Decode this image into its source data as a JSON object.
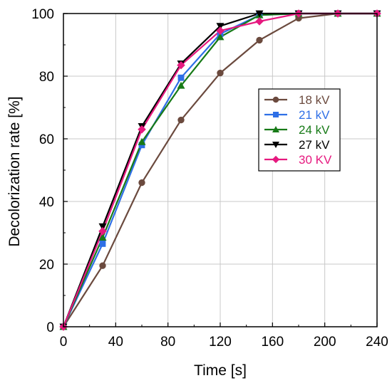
{
  "chart_data": {
    "type": "line",
    "xlabel": "Time [s]",
    "ylabel": "Decolorization rate [%]",
    "xlim": [
      0,
      240
    ],
    "ylim": [
      0,
      100
    ],
    "xticks": [
      0,
      40,
      80,
      120,
      160,
      200,
      240
    ],
    "yticks": [
      0,
      20,
      40,
      60,
      80,
      100
    ],
    "grid": true,
    "legend_position": "right",
    "x": [
      0,
      30,
      60,
      90,
      120,
      150,
      180,
      210,
      240
    ],
    "series": [
      {
        "name": "18 kV",
        "color": "#6B4A3E",
        "marker": "circle",
        "values": [
          0,
          19.5,
          46,
          66,
          81,
          91.5,
          98.5,
          100,
          100
        ]
      },
      {
        "name": "21 kV",
        "color": "#2E6FE6",
        "marker": "square",
        "values": [
          0,
          26.5,
          58,
          79.5,
          93.5,
          99.5,
          100,
          100,
          100
        ]
      },
      {
        "name": "24 kV",
        "color": "#177A17",
        "marker": "triangle-up",
        "values": [
          0,
          28.5,
          59,
          77,
          92.5,
          99.5,
          100,
          100,
          100
        ]
      },
      {
        "name": "27 kV",
        "color": "#000000",
        "marker": "triangle-down",
        "values": [
          0,
          32,
          64,
          84,
          96,
          100,
          100,
          100,
          100
        ]
      },
      {
        "name": "30 KV",
        "color": "#E6197F",
        "marker": "diamond",
        "values": [
          0,
          30.5,
          63,
          83.5,
          94.5,
          97.5,
          100,
          100,
          100
        ]
      }
    ]
  }
}
